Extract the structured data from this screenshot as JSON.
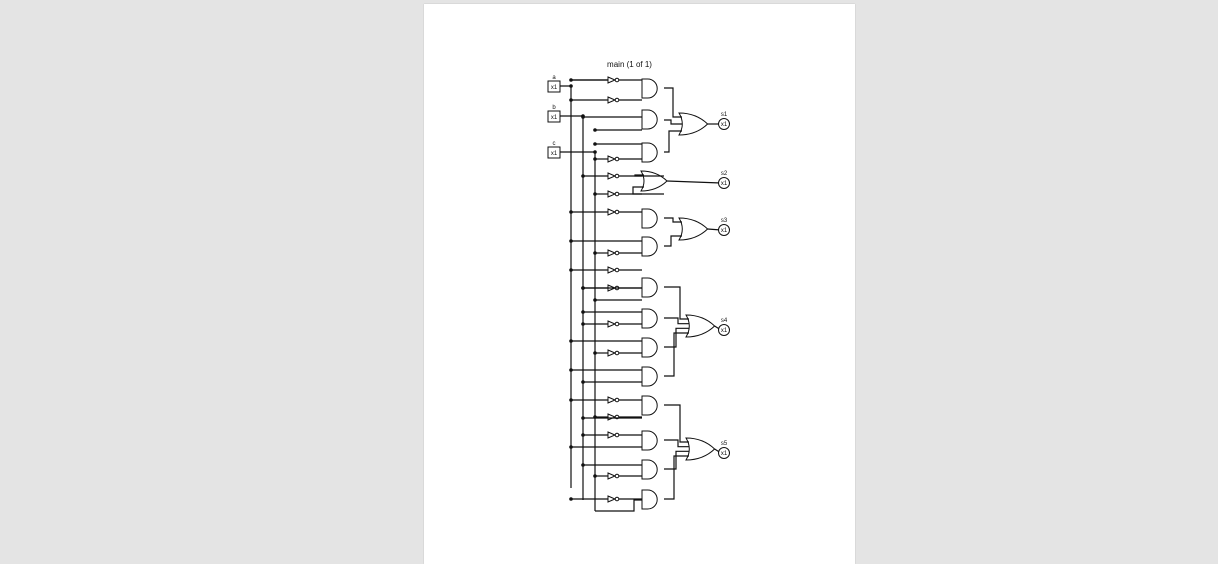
{
  "sheet": {
    "title": "main (1 of 1)"
  },
  "inputs": [
    {
      "name": "a",
      "width_label": "x1"
    },
    {
      "name": "b",
      "width_label": "x1"
    },
    {
      "name": "c",
      "width_label": "x1"
    }
  ],
  "outputs": [
    {
      "name": "s1",
      "width_label": "x1"
    },
    {
      "name": "s2",
      "width_label": "x1"
    },
    {
      "name": "s3",
      "width_label": "x1"
    },
    {
      "name": "s4",
      "width_label": "x1"
    },
    {
      "name": "s5",
      "width_label": "x1"
    }
  ],
  "colors": {
    "viewer_background": "#e4e4e4",
    "page": "#ffffff",
    "ink": "#111111"
  }
}
